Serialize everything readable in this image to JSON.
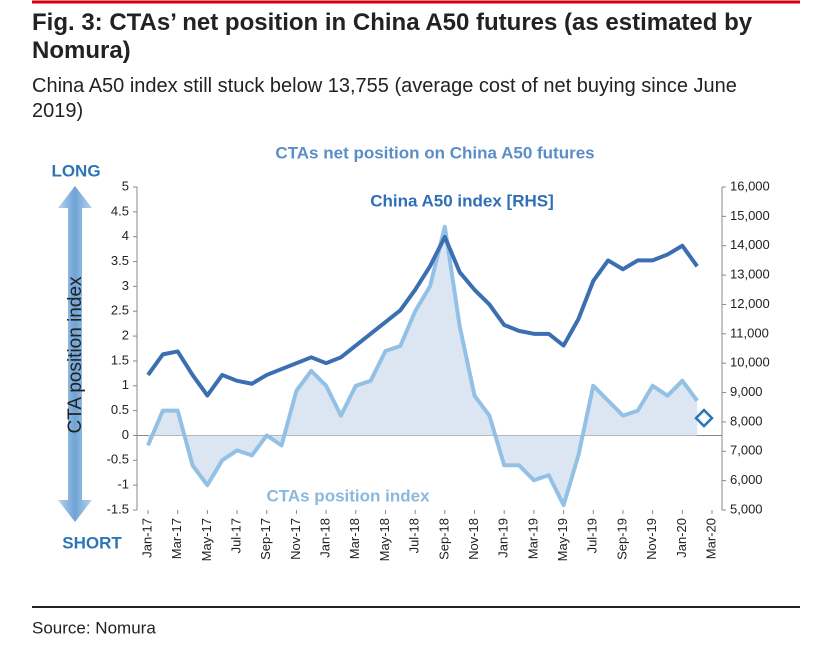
{
  "header": {
    "title": "Fig. 3: CTAs’ net position in China A50 futures (as estimated by Nomura)",
    "subtitle": "China A50 index still stuck below 13,755 (average cost of net buying since June 2019)"
  },
  "chart_data": {
    "type": "line",
    "title": "CTAs net position on China A50 futures",
    "ylabel": "CTA position index",
    "top_label": "LONG",
    "bottom_label": "SHORT",
    "categories": [
      "Jan-17",
      null,
      "Mar-17",
      null,
      "May-17",
      null,
      "Jul-17",
      null,
      "Sep-17",
      null,
      "Nov-17",
      null,
      "Jan-18",
      null,
      "Mar-18",
      null,
      "May-18",
      null,
      "Jul-18",
      null,
      "Sep-18",
      null,
      "Nov-18",
      null,
      "Jan-19",
      null,
      "Mar-19",
      null,
      "May-19",
      null,
      "Jul-19",
      null,
      "Sep-19",
      null,
      "Nov-19",
      null,
      "Jan-20",
      null,
      "Mar-20"
    ],
    "series": [
      {
        "name": "CTAs position index",
        "color": "#93c1e6",
        "area": true,
        "values": [
          -0.2,
          0.5,
          0.5,
          -0.6,
          -1.0,
          -0.5,
          -0.3,
          -0.4,
          0.0,
          -0.2,
          0.9,
          1.3,
          1.0,
          0.4,
          1.0,
          1.1,
          1.7,
          1.8,
          2.5,
          3.0,
          4.2,
          2.2,
          0.8,
          0.4,
          -0.6,
          -0.6,
          -0.9,
          -0.8,
          -1.4,
          -0.4,
          1.0,
          0.7,
          0.4,
          0.5,
          1.0,
          0.8,
          1.1,
          0.7,
          null
        ]
      },
      {
        "name": "China A50 index [RHS]",
        "color": "#3b6fb1",
        "axis": "y2",
        "values": [
          9600,
          10300,
          10400,
          9600,
          8900,
          9600,
          9400,
          9300,
          9600,
          9800,
          10000,
          10200,
          10000,
          10200,
          10600,
          11000,
          11400,
          11800,
          12500,
          13300,
          14300,
          13100,
          12500,
          12000,
          11300,
          11100,
          11000,
          11000,
          10600,
          11500,
          12800,
          13500,
          13200,
          13500,
          13500,
          13700,
          14000,
          13300,
          null
        ]
      },
      {
        "color": "#2e75b6",
        "marker": "diamond",
        "values": [
          null,
          null,
          null,
          null,
          null,
          null,
          null,
          null,
          null,
          null,
          null,
          null,
          null,
          null,
          null,
          null,
          null,
          null,
          null,
          null,
          null,
          null,
          null,
          null,
          null,
          null,
          null,
          null,
          null,
          null,
          null,
          null,
          null,
          null,
          null,
          null,
          null,
          null,
          0.35
        ]
      }
    ],
    "ylim": [
      -1.5,
      5
    ],
    "yticks": [
      -1.5,
      -1,
      -0.5,
      0,
      0.5,
      1,
      1.5,
      2,
      2.5,
      3,
      3.5,
      4,
      4.5,
      5
    ],
    "y2lim": [
      5000,
      16000
    ],
    "y2ticks": [
      {
        "value": 5000,
        "label": "5,000"
      },
      {
        "value": 6000,
        "label": "6,000"
      },
      {
        "value": 7000,
        "label": "7,000"
      },
      {
        "value": 8000,
        "label": "8,000"
      },
      {
        "value": 9000,
        "label": "9,000"
      },
      {
        "value": 10000,
        "label": "10,000"
      },
      {
        "value": 11000,
        "label": "11,000"
      },
      {
        "value": 12000,
        "label": "12,000"
      },
      {
        "value": 13000,
        "label": "13,000"
      },
      {
        "value": 14000,
        "label": "14,000"
      },
      {
        "value": 15000,
        "label": "15,000"
      },
      {
        "value": 16000,
        "label": "16,000"
      }
    ],
    "area_color": "#dce6f2"
  },
  "footer": {
    "source": "Source: Nomura"
  }
}
